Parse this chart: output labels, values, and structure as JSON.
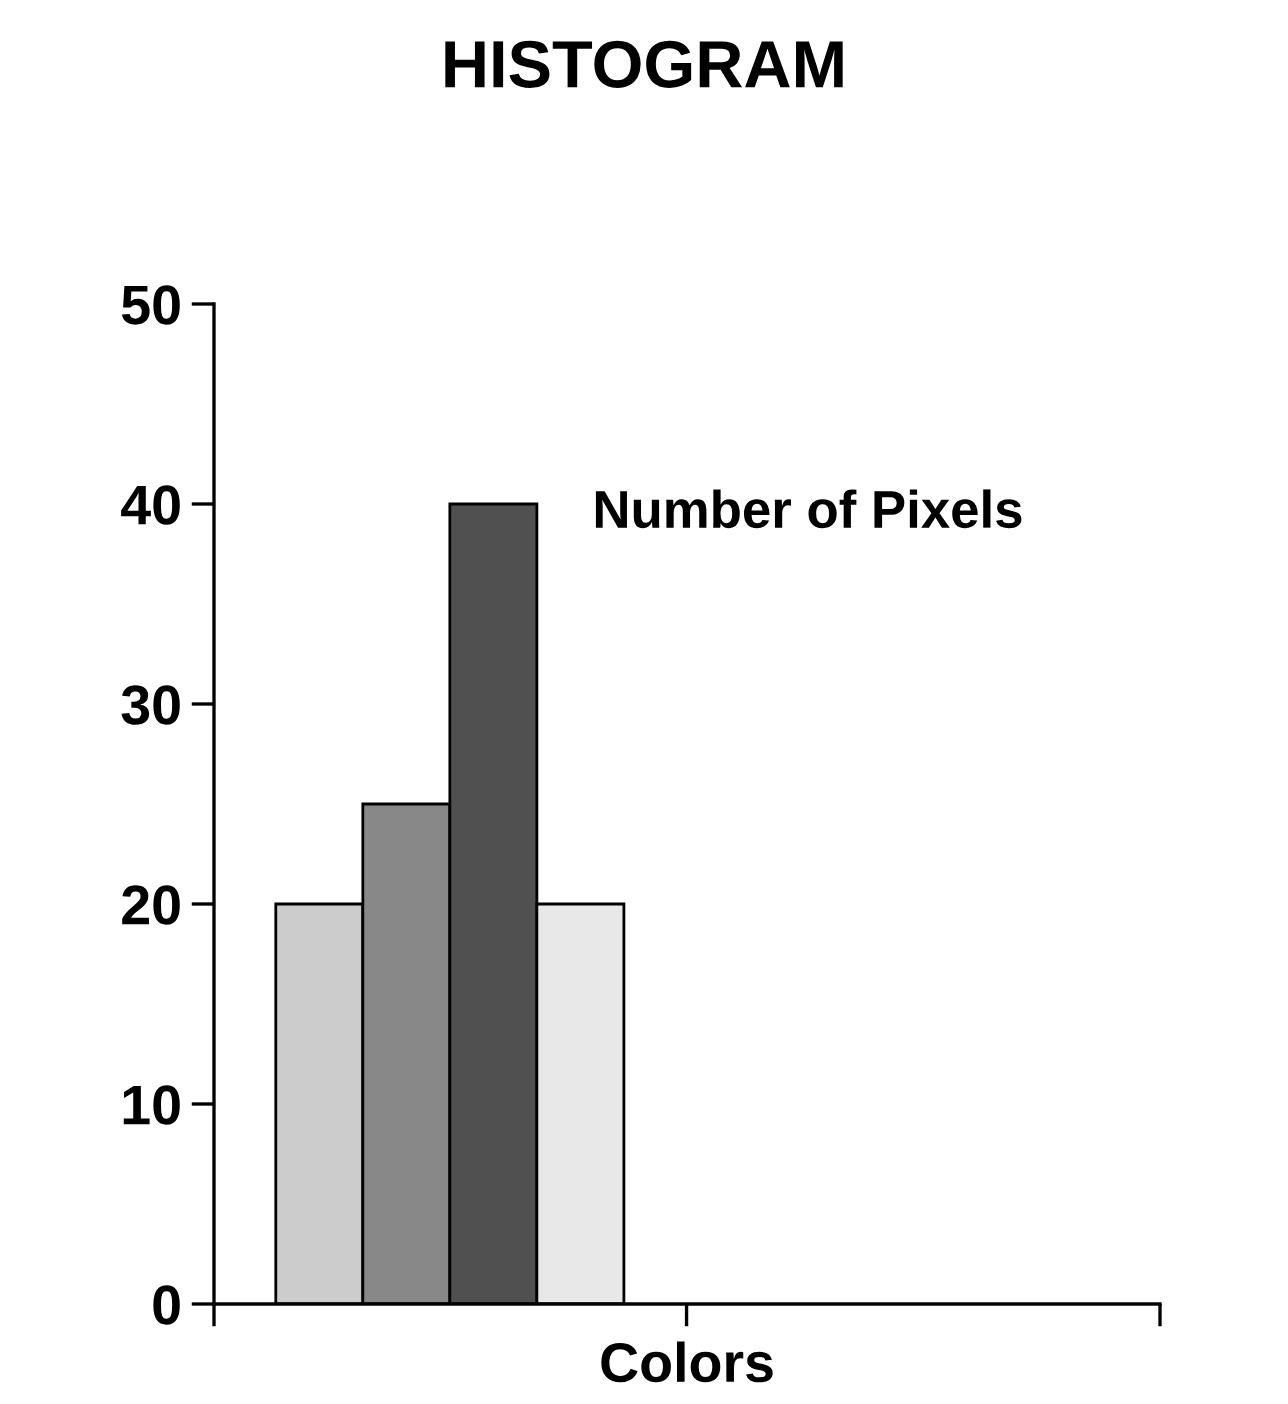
{
  "chart_data": {
    "type": "bar",
    "title": "HISTOGRAM",
    "xlabel": "Colors",
    "categories": [
      null,
      null,
      null,
      null
    ],
    "values": [
      20,
      25,
      40,
      20
    ],
    "colors": [
      "#cccccc",
      "#888888",
      "#505050",
      "#e8e8e8"
    ],
    "ylim": [
      0,
      50
    ],
    "yticks": [
      0,
      10,
      20,
      30,
      40,
      50
    ],
    "grid": false,
    "legend": false,
    "annotations": [
      "Number of Pixels"
    ]
  }
}
